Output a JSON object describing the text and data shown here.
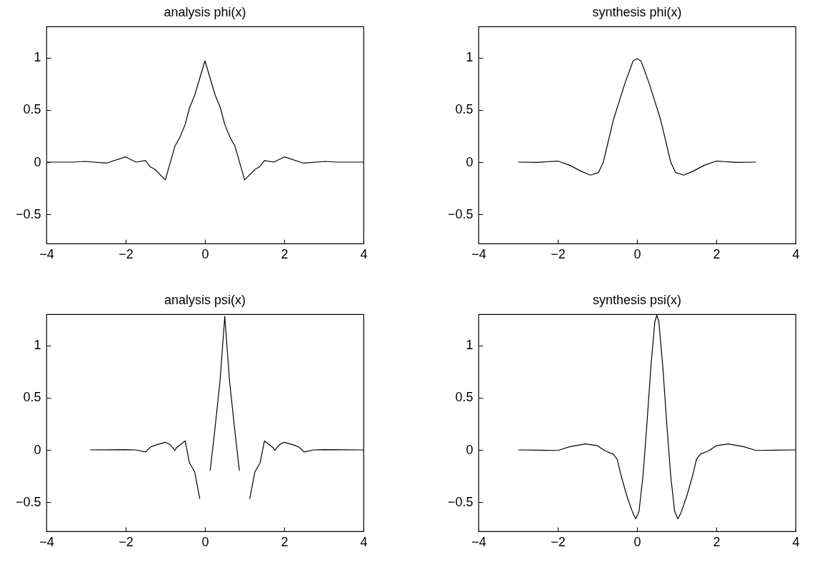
{
  "chart_data": [
    {
      "type": "line",
      "title": "analysis phi(x)",
      "color": "#000000",
      "xlim": [
        -4,
        4
      ],
      "ylim": [
        -0.78,
        1.3
      ],
      "xticks": [
        -4,
        -2,
        0,
        2,
        4
      ],
      "yticks": [
        -0.5,
        0,
        0.5,
        1
      ],
      "x": [
        -4,
        -3.33,
        -3.03,
        -2.49,
        -2,
        -1.74,
        -1.5,
        -1.38,
        -1.26,
        -1,
        -0.76,
        -0.63,
        -0.5,
        -0.39,
        -0.26,
        0,
        0.26,
        0.39,
        0.5,
        0.63,
        0.76,
        1,
        1.26,
        1.38,
        1.5,
        1.74,
        2,
        2.49,
        3.03,
        3.33,
        4
      ],
      "values": [
        0,
        0,
        0.007,
        -0.01,
        0.05,
        0,
        0.014,
        -0.045,
        -0.07,
        -0.17,
        0.15,
        0.24,
        0.36,
        0.52,
        0.64,
        0.97,
        0.64,
        0.52,
        0.36,
        0.24,
        0.15,
        -0.17,
        -0.07,
        -0.045,
        0.014,
        0,
        0.05,
        -0.01,
        0.007,
        0,
        0
      ]
    },
    {
      "type": "line",
      "title": "synthesis phi(x)",
      "color": "#000000",
      "xlim": [
        -4,
        4
      ],
      "ylim": [
        -0.78,
        1.3
      ],
      "xticks": [
        -4,
        -2,
        0,
        2,
        4
      ],
      "yticks": [
        -0.5,
        0,
        0.5,
        1
      ],
      "x": [
        -3,
        -2.5,
        -2,
        -1.7,
        -1.4,
        -1.18,
        -0.97,
        -0.85,
        -0.6,
        -0.31,
        -0.1,
        0,
        0.1,
        0.31,
        0.6,
        0.85,
        0.97,
        1.18,
        1.4,
        1.7,
        2,
        2.5,
        3
      ],
      "values": [
        0,
        -0.002,
        0.01,
        -0.03,
        -0.09,
        -0.125,
        -0.1,
        0,
        0.4,
        0.75,
        0.97,
        0.99,
        0.97,
        0.75,
        0.4,
        0,
        -0.1,
        -0.125,
        -0.09,
        -0.03,
        0.01,
        -0.002,
        0
      ]
    },
    {
      "type": "line",
      "title": "analysis psi(x)",
      "color": "#000000",
      "xlim": [
        -4,
        4
      ],
      "ylim": [
        -0.78,
        1.3
      ],
      "xticks": [
        -4,
        -2,
        0,
        2,
        4
      ],
      "yticks": [
        -0.5,
        0,
        0.5,
        1
      ],
      "x": [
        -2.9,
        -2,
        -1.75,
        -1.5,
        -1.37,
        -1.25,
        -1,
        -0.88,
        -0.76,
        -0.72,
        -0.5,
        -0.39,
        -0.26,
        -0.13,
        0,
        0.13,
        0.24,
        0.38,
        0.5,
        0.62,
        0.76,
        0.87,
        1,
        1.13,
        1.26,
        1.39,
        1.5,
        1.72,
        1.76,
        1.88,
        2,
        2.25,
        2.37,
        2.5,
        2.75,
        3,
        4
      ],
      "values": [
        0,
        0.002,
        0,
        -0.02,
        0.027,
        0.045,
        0.073,
        0.05,
        -0.005,
        0.02,
        0.086,
        -0.125,
        -0.21,
        -0.47,
        null,
        -0.2,
        0.16,
        0.66,
        1.28,
        0.66,
        0.16,
        -0.2,
        null,
        -0.47,
        -0.21,
        -0.125,
        0.086,
        0.02,
        -0.005,
        0.05,
        0.073,
        0.045,
        0.027,
        -0.02,
        0,
        0.002,
        0
      ]
    },
    {
      "type": "line",
      "title": "synthesis psi(x)",
      "color": "#000000",
      "xlim": [
        -4,
        4
      ],
      "ylim": [
        -0.78,
        1.3
      ],
      "xticks": [
        -4,
        -2,
        0,
        2,
        4
      ],
      "yticks": [
        -0.5,
        0,
        0.5,
        1
      ],
      "x": [
        -3,
        -2.5,
        -2,
        -1.7,
        -1.3,
        -1,
        -0.8,
        -0.6,
        -0.5,
        -0.4,
        -0.25,
        -0.1,
        -0.03,
        0.05,
        0.15,
        0.25,
        0.35,
        0.45,
        0.5,
        0.55,
        0.65,
        0.75,
        0.85,
        0.95,
        1.03,
        1.1,
        1.25,
        1.4,
        1.5,
        1.6,
        1.8,
        2,
        2.3,
        2.7,
        3,
        3.5,
        4
      ],
      "values": [
        0,
        -0.003,
        -0.005,
        0.03,
        0.057,
        0.04,
        -0.01,
        -0.04,
        -0.09,
        -0.25,
        -0.45,
        -0.61,
        -0.66,
        -0.59,
        -0.25,
        0.25,
        0.8,
        1.23,
        1.29,
        1.23,
        0.8,
        0.25,
        -0.25,
        -0.59,
        -0.66,
        -0.61,
        -0.45,
        -0.25,
        -0.09,
        -0.04,
        -0.01,
        0.04,
        0.057,
        0.03,
        -0.005,
        -0.003,
        0
      ]
    }
  ]
}
